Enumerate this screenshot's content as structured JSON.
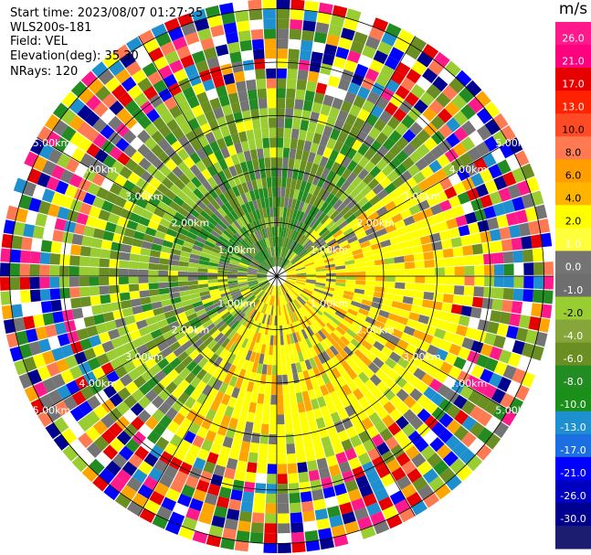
{
  "header": {
    "start_time": "Start time: 2023/08/07 01:27:25",
    "instrument": "WLS200s-181",
    "field": "Field: VEL",
    "elevation": "Elevation(deg): 35.30",
    "nrays": "NRays: 120"
  },
  "colorbar": {
    "unit": "m/s",
    "ticks": [
      "26.0",
      "21.0",
      "17.0",
      "13.0",
      "10.0",
      "8.0",
      "6.0",
      "4.0",
      "2.0",
      "1.0",
      "0.0",
      "-1.0",
      "-2.0",
      "-4.0",
      "-6.0",
      "-8.0",
      "-10.0",
      "-13.0",
      "-17.0",
      "-21.0",
      "-26.0",
      "-30.0"
    ],
    "colors": [
      "#ff1a8c",
      "#ff007f",
      "#e60000",
      "#ff2200",
      "#ff4a26",
      "#ff7a52",
      "#ff9e00",
      "#ffb400",
      "#ffff00",
      "#ffff3c",
      "#747474",
      "#6e6e6e",
      "#9acd32",
      "#86a53a",
      "#6b8e23",
      "#228b22",
      "#1a8f1a",
      "#1e90d0",
      "#1c6fe0",
      "#0000ff",
      "#0000c0",
      "#000090",
      "#1c1c70"
    ]
  },
  "range_rings": {
    "labels": [
      "1.00km",
      "2.00km",
      "3.00km",
      "4.00km",
      "5.00km"
    ]
  },
  "palette": {
    "green_dark": "#228b22",
    "green_mid": "#6b8e23",
    "green_light": "#9acd32",
    "gray": "#747474",
    "yellow": "#ffff00",
    "orange": "#ffa500",
    "noise": [
      "#ff1a8c",
      "#e60000",
      "#ff7a52",
      "#ffff00",
      "#ffa500",
      "#6b8e23",
      "#9acd32",
      "#228b22",
      "#1e90d0",
      "#0000ff",
      "#000090",
      "#747474",
      "#ffffff"
    ]
  }
}
